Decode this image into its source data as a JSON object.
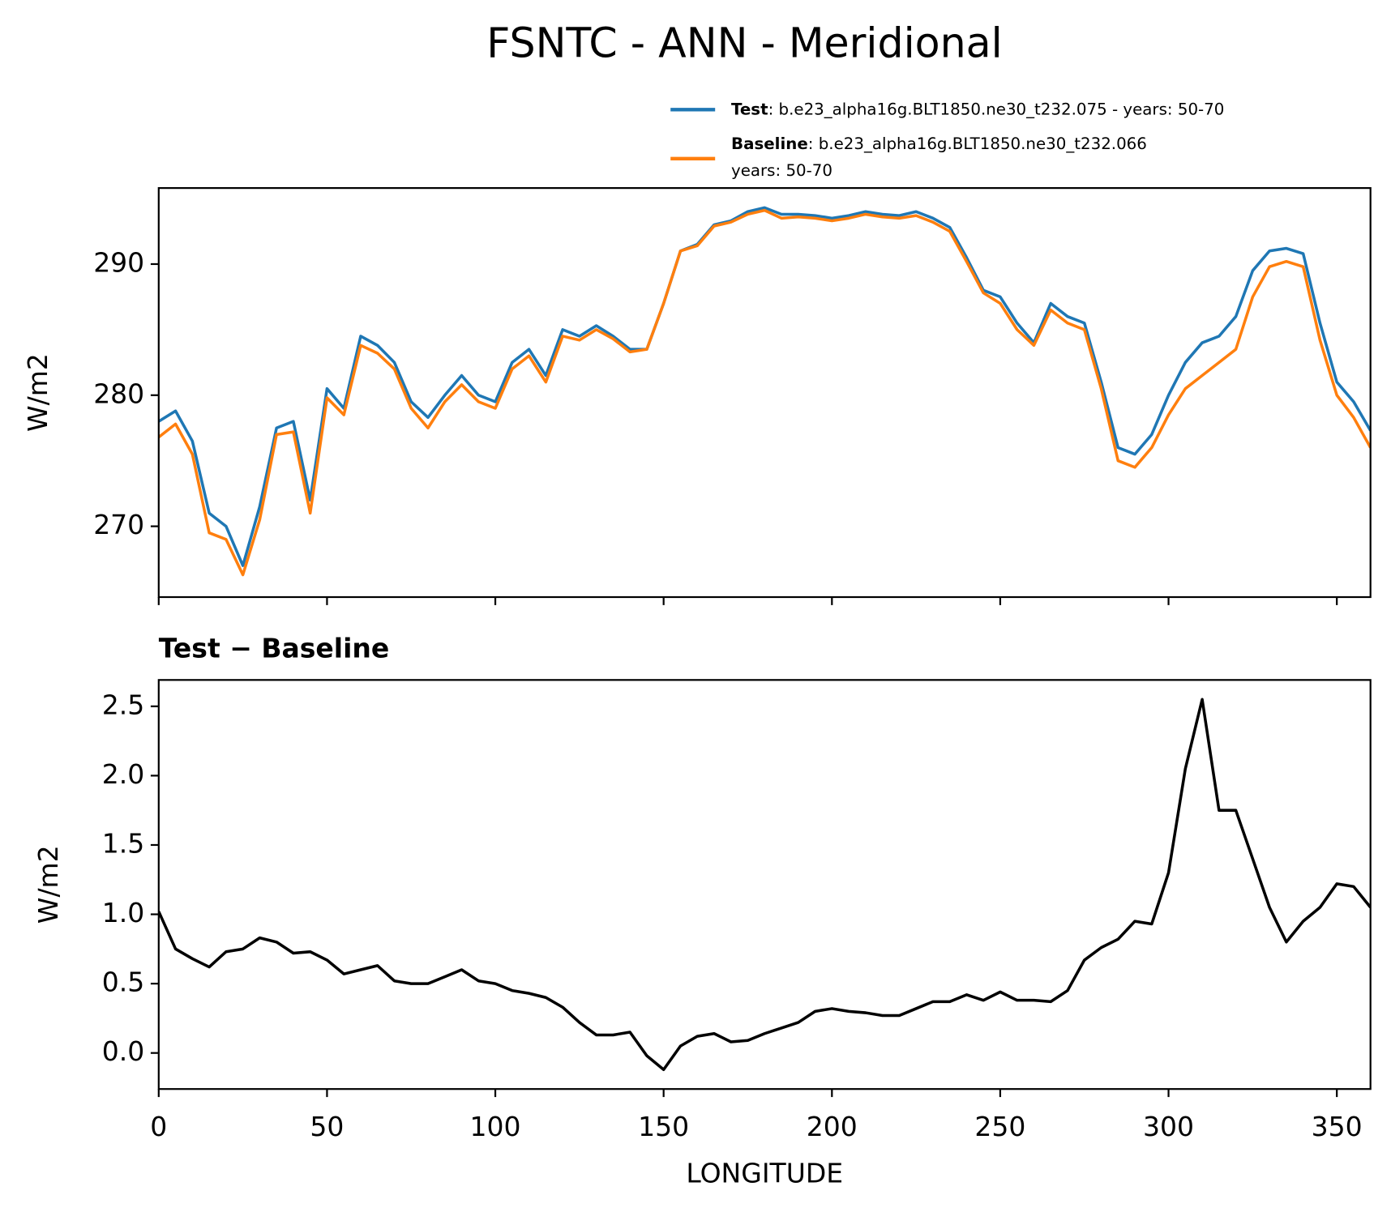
{
  "chart_data": [
    {
      "type": "line",
      "title": "FSNTC - ANN - Meridional",
      "ylabel": "W/m2",
      "x": [
        0,
        5,
        10,
        15,
        20,
        25,
        30,
        35,
        40,
        45,
        50,
        55,
        60,
        65,
        70,
        75,
        80,
        85,
        90,
        95,
        100,
        105,
        110,
        115,
        120,
        125,
        130,
        135,
        140,
        145,
        150,
        155,
        160,
        165,
        170,
        175,
        180,
        185,
        190,
        195,
        200,
        205,
        210,
        215,
        220,
        225,
        230,
        235,
        240,
        245,
        250,
        255,
        260,
        265,
        270,
        275,
        280,
        285,
        290,
        295,
        300,
        305,
        310,
        315,
        320,
        325,
        330,
        335,
        340,
        345,
        350,
        355,
        360
      ],
      "series": [
        {
          "name": "Test",
          "description": [
            ": b.e23_alpha16g.BLT1850.ne30_t232.075 - years: 50-70"
          ],
          "color": "#1f77b4",
          "values": [
            278,
            278.8,
            276.5,
            271,
            270,
            267,
            271.5,
            277.5,
            278,
            272,
            280.5,
            279,
            284.5,
            283.8,
            282.5,
            279.5,
            278.3,
            280,
            281.5,
            280,
            279.5,
            282.5,
            283.5,
            281.5,
            285,
            284.5,
            285.3,
            284.5,
            283.5,
            283.5,
            287,
            291,
            291.5,
            293,
            293.3,
            294,
            294.3,
            293.8,
            293.8,
            293.7,
            293.5,
            293.7,
            294,
            293.8,
            293.7,
            294,
            293.5,
            292.8,
            290.5,
            288,
            287.5,
            285.5,
            284,
            287,
            286,
            285.5,
            281,
            276,
            275.5,
            277,
            280,
            282.5,
            284,
            284.5,
            286,
            289.5,
            291,
            291.2,
            290.8,
            285.5,
            281,
            279.5,
            277.3
          ]
        },
        {
          "name": "Baseline",
          "description": [
            ": b.e23_alpha16g.BLT1850.ne30_t232.066",
            "years: 50-70"
          ],
          "color": "#ff7f0e",
          "values": [
            276.8,
            277.8,
            275.5,
            269.5,
            269,
            266.3,
            270.5,
            277,
            277.2,
            271,
            279.8,
            278.5,
            283.8,
            283.2,
            282,
            279,
            277.5,
            279.5,
            280.8,
            279.5,
            279,
            282,
            283,
            281,
            284.5,
            284.2,
            285,
            284.3,
            283.3,
            283.5,
            287,
            291,
            291.4,
            292.9,
            293.2,
            293.8,
            294.1,
            293.5,
            293.6,
            293.5,
            293.3,
            293.5,
            293.8,
            293.6,
            293.5,
            293.7,
            293.2,
            292.5,
            290.2,
            287.8,
            287,
            285,
            283.8,
            286.5,
            285.5,
            285,
            280.5,
            275,
            274.5,
            276,
            278.5,
            280.5,
            281.5,
            282.5,
            283.5,
            287.5,
            289.8,
            290.2,
            289.8,
            284.2,
            280,
            278.3,
            276
          ]
        }
      ],
      "xlim": [
        0,
        360
      ],
      "xticks": [
        0,
        50,
        100,
        150,
        200,
        250,
        300,
        350
      ],
      "xtick_labels": false,
      "ylim": [
        264.6,
        295.8
      ],
      "yticks": [
        270,
        280,
        290
      ],
      "legend": "upper right"
    },
    {
      "type": "line",
      "title": "Test − Baseline",
      "xlabel": "LONGITUDE",
      "ylabel": "W/m2",
      "x": [
        0,
        5,
        10,
        15,
        20,
        25,
        30,
        35,
        40,
        45,
        50,
        55,
        60,
        65,
        70,
        75,
        80,
        85,
        90,
        95,
        100,
        105,
        110,
        115,
        120,
        125,
        130,
        135,
        140,
        145,
        150,
        155,
        160,
        165,
        170,
        175,
        180,
        185,
        190,
        195,
        200,
        205,
        210,
        215,
        220,
        225,
        230,
        235,
        240,
        245,
        250,
        255,
        260,
        265,
        270,
        275,
        280,
        285,
        290,
        295,
        300,
        305,
        310,
        315,
        320,
        325,
        330,
        335,
        340,
        345,
        350,
        355,
        360
      ],
      "series": [
        {
          "color": "#000000",
          "values": [
            1.02,
            0.75,
            0.68,
            0.62,
            0.73,
            0.75,
            0.83,
            0.8,
            0.72,
            0.73,
            0.67,
            0.57,
            0.6,
            0.63,
            0.52,
            0.5,
            0.5,
            0.55,
            0.6,
            0.52,
            0.5,
            0.45,
            0.43,
            0.4,
            0.33,
            0.22,
            0.13,
            0.13,
            0.15,
            -0.02,
            -0.12,
            0.05,
            0.12,
            0.14,
            0.08,
            0.09,
            0.14,
            0.18,
            0.22,
            0.3,
            0.32,
            0.3,
            0.29,
            0.27,
            0.27,
            0.32,
            0.37,
            0.37,
            0.42,
            0.38,
            0.44,
            0.38,
            0.38,
            0.37,
            0.45,
            0.67,
            0.76,
            0.82,
            0.95,
            0.93,
            1.3,
            2.05,
            2.55,
            1.75,
            1.75,
            1.4,
            1.05,
            0.8,
            0.95,
            1.05,
            1.22,
            1.2,
            1.05
          ]
        }
      ],
      "xlim": [
        0,
        360
      ],
      "xticks": [
        0,
        50,
        100,
        150,
        200,
        250,
        300,
        350
      ],
      "xtick_labels": true,
      "ylim": [
        -0.26,
        2.69
      ],
      "yticks": [
        {
          "value": 0,
          "label": "0.0"
        },
        0.5,
        {
          "value": 1,
          "label": "1.0"
        },
        1.5,
        {
          "value": 2,
          "label": "2.0"
        },
        2.5
      ]
    }
  ]
}
